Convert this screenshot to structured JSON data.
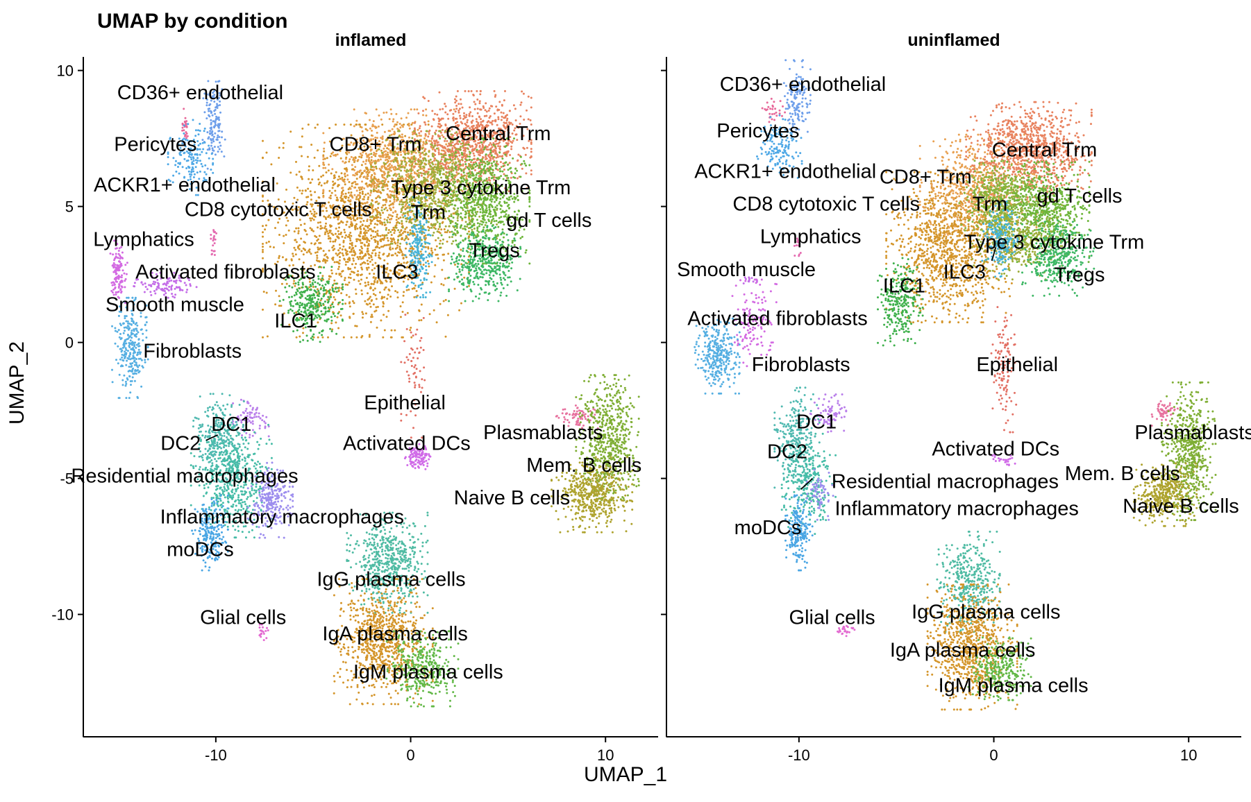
{
  "title": "UMAP by condition",
  "colors": {
    "Central Trm": "#E8825E",
    "CD8+ Trm": "#E8A050",
    "Type 3 cytokine Trm": "#9EAD3A",
    "Trm": "#88B43C",
    "gd T cells": "#6DB53A",
    "Tregs": "#3DB764",
    "ILC3": "#45B3D8",
    "CD8 cytotoxic T cells": "#D4952A",
    "ILC1": "#3EB04B",
    "CD36+ endothelial": "#6E9FEA",
    "Pericytes": "#E7699A",
    "ACKR1+ endothelial": "#4EA8E6",
    "Lymphatics": "#E46BB0",
    "Activated fibroblasts": "#D36AE2",
    "Smooth muscle": "#C46DE8",
    "Fibroblasts": "#56AFE2",
    "Epithelial": "#E26F63",
    "Activated DCs": "#D06AE8",
    "Plasmablasts": "#E7739F",
    "Mem. B cells": "#7FAE34",
    "Naive B cells": "#AEA32E",
    "DC1": "#B97EEA",
    "DC2": "#4FB9B0",
    "Residential macrophages": "#46BCA7",
    "Inflammatory macrophages": "#9C8DEE",
    "moDCs": "#4AA6E4",
    "IgG plasma cells": "#4FBBA3",
    "IgA plasma cells": "#D4952A",
    "IgM plasma cells": "#62B847",
    "Glial cells": "#E36BD1"
  },
  "chart_data": {
    "type": "scatter",
    "title": "UMAP by condition",
    "xlabel": "UMAP_1",
    "ylabel": "UMAP_2",
    "xlim": [
      -16.8,
      12.7
    ],
    "ylim": [
      -14.5,
      10.5
    ],
    "xticks": [
      -10,
      0,
      10
    ],
    "yticks": [
      10,
      5,
      0,
      -5,
      -10
    ],
    "grid": false,
    "legend": "none",
    "panels": [
      {
        "name": "inflamed",
        "clusters": [
          {
            "name": "CD8 cytotoxic T cells",
            "x": -2.3,
            "y": 4.1,
            "sx": 2.3,
            "sy": 1.7,
            "n": 1700
          },
          {
            "name": "CD8+ Trm",
            "x": -0.8,
            "y": 6.5,
            "sx": 1.6,
            "sy": 0.9,
            "n": 700
          },
          {
            "name": "Central Trm",
            "x": 3.2,
            "y": 7.4,
            "sx": 1.3,
            "sy": 0.8,
            "n": 900
          },
          {
            "name": "Type 3 cytokine Trm",
            "x": 1.2,
            "y": 5.7,
            "sx": 1.4,
            "sy": 0.9,
            "n": 800
          },
          {
            "name": "gd T cells",
            "x": 3.8,
            "y": 5.2,
            "sx": 1.0,
            "sy": 1.0,
            "n": 700
          },
          {
            "name": "Tregs",
            "x": 3.8,
            "y": 2.9,
            "sx": 0.8,
            "sy": 0.6,
            "n": 400
          },
          {
            "name": "ILC3",
            "x": 0.4,
            "y": 3.5,
            "sx": 0.3,
            "sy": 0.8,
            "n": 200
          },
          {
            "name": "ILC1",
            "x": -5.1,
            "y": 1.4,
            "sx": 0.7,
            "sy": 0.6,
            "n": 300
          },
          {
            "name": "CD36+ endothelial",
            "x": -10.1,
            "y": 8.0,
            "sx": 0.25,
            "sy": 0.7,
            "n": 130
          },
          {
            "name": "Pericytes",
            "x": -11.6,
            "y": 7.9,
            "sx": 0.1,
            "sy": 0.3,
            "n": 25
          },
          {
            "name": "ACKR1+ endothelial",
            "x": -11.3,
            "y": 6.8,
            "sx": 0.5,
            "sy": 0.6,
            "n": 150
          },
          {
            "name": "Lymphatics",
            "x": -10.1,
            "y": 3.6,
            "sx": 0.1,
            "sy": 0.3,
            "n": 20
          },
          {
            "name": "Activated fibroblasts",
            "x": -15.0,
            "y": 2.6,
            "sx": 0.2,
            "sy": 0.5,
            "n": 120
          },
          {
            "name": "Smooth muscle",
            "x": -12.6,
            "y": 2.1,
            "sx": 0.7,
            "sy": 0.2,
            "n": 110
          },
          {
            "name": "Fibroblasts",
            "x": -14.4,
            "y": -0.2,
            "sx": 0.4,
            "sy": 0.8,
            "n": 260
          },
          {
            "name": "Epithelial",
            "x": 0.2,
            "y": -1.2,
            "sx": 0.3,
            "sy": 1.0,
            "n": 60
          },
          {
            "name": "Activated DCs",
            "x": 0.4,
            "y": -4.2,
            "sx": 0.3,
            "sy": 0.2,
            "n": 110
          },
          {
            "name": "Plasmablasts",
            "x": 8.5,
            "y": -2.7,
            "sx": 0.5,
            "sy": 0.2,
            "n": 70
          },
          {
            "name": "Mem. B cells",
            "x": 10.1,
            "y": -3.5,
            "sx": 0.7,
            "sy": 1.0,
            "n": 600
          },
          {
            "name": "Naive B cells",
            "x": 9.3,
            "y": -5.6,
            "sx": 0.9,
            "sy": 0.6,
            "n": 500
          },
          {
            "name": "DC1",
            "x": -8.2,
            "y": -2.8,
            "sx": 0.4,
            "sy": 0.3,
            "n": 80
          },
          {
            "name": "DC2",
            "x": -9.9,
            "y": -3.5,
            "sx": 0.6,
            "sy": 0.7,
            "n": 300
          },
          {
            "name": "Residential macrophages",
            "x": -9.2,
            "y": -5.1,
            "sx": 0.9,
            "sy": 0.9,
            "n": 500
          },
          {
            "name": "Inflammatory macrophages",
            "x": -7.2,
            "y": -5.8,
            "sx": 0.5,
            "sy": 0.6,
            "n": 250
          },
          {
            "name": "moDCs",
            "x": -10.3,
            "y": -7.0,
            "sx": 0.4,
            "sy": 0.6,
            "n": 220
          },
          {
            "name": "IgG plasma cells",
            "x": -1.2,
            "y": -8.1,
            "sx": 0.9,
            "sy": 0.8,
            "n": 550
          },
          {
            "name": "IgA plasma cells",
            "x": -1.4,
            "y": -11.0,
            "sx": 1.1,
            "sy": 1.0,
            "n": 800
          },
          {
            "name": "IgM plasma cells",
            "x": 0.6,
            "y": -12.0,
            "sx": 0.8,
            "sy": 0.6,
            "n": 350
          },
          {
            "name": "Glial cells",
            "x": -7.6,
            "y": -10.6,
            "sx": 0.15,
            "sy": 0.15,
            "n": 20
          }
        ],
        "labels": [
          {
            "text": "CD36+ endothelial",
            "x": -10.8,
            "y": 9.2
          },
          {
            "text": "Pericytes",
            "x": -13.1,
            "y": 7.3
          },
          {
            "text": "ACKR1+ endothelial",
            "x": -11.6,
            "y": 5.8
          },
          {
            "text": "CD8 cytotoxic T cells",
            "x": -6.8,
            "y": 4.9
          },
          {
            "text": "CD8+ Trm",
            "x": -1.8,
            "y": 7.3
          },
          {
            "text": "Central Trm",
            "x": 4.5,
            "y": 7.7
          },
          {
            "text": "Type 3 cytokine Trm",
            "x": 3.6,
            "y": 5.7
          },
          {
            "text": "Trm",
            "x": 0.9,
            "y": 4.8
          },
          {
            "text": "gd T cells",
            "x": 7.1,
            "y": 4.5
          },
          {
            "text": "Tregs",
            "x": 4.3,
            "y": 3.4
          },
          {
            "text": "ILC3",
            "x": -0.7,
            "y": 2.6
          },
          {
            "text": "ILC1",
            "x": -5.9,
            "y": 0.8
          },
          {
            "text": "Lymphatics",
            "x": -13.7,
            "y": 3.8
          },
          {
            "text": "Activated fibroblasts",
            "x": -9.5,
            "y": 2.6
          },
          {
            "text": "Smooth muscle",
            "x": -12.1,
            "y": 1.4
          },
          {
            "text": "Fibroblasts",
            "x": -11.2,
            "y": -0.3
          },
          {
            "text": "Epithelial",
            "x": -0.3,
            "y": -2.2
          },
          {
            "text": "Activated DCs",
            "x": -0.2,
            "y": -3.7
          },
          {
            "text": "Plasmablasts",
            "x": 6.8,
            "y": -3.3
          },
          {
            "text": "Mem. B cells",
            "x": 8.9,
            "y": -4.5
          },
          {
            "text": "Naive B cells",
            "x": 5.2,
            "y": -5.7
          },
          {
            "text": "DC1",
            "x": -9.2,
            "y": -3.0
          },
          {
            "text": "DC2",
            "x": -11.8,
            "y": -3.7
          },
          {
            "text": "Residential macrophages",
            "x": -11.6,
            "y": -4.9
          },
          {
            "text": "Inflammatory macrophages",
            "x": -6.6,
            "y": -6.4
          },
          {
            "text": "moDCs",
            "x": -10.8,
            "y": -7.6
          },
          {
            "text": "IgG plasma cells",
            "x": -1.0,
            "y": -8.7
          },
          {
            "text": "Glial cells",
            "x": -8.6,
            "y": -10.1
          },
          {
            "text": "IgA plasma cells",
            "x": -0.8,
            "y": -10.7
          },
          {
            "text": "IgM plasma cells",
            "x": 0.9,
            "y": -12.1
          }
        ],
        "leaders": [
          {
            "x1": -9.9,
            "y1": -3.4,
            "x2": -10.5,
            "y2": -3.6
          }
        ]
      },
      {
        "name": "uninflamed",
        "clusters": [
          {
            "name": "CD8 cytotoxic T cells",
            "x": -2.3,
            "y": 3.5,
            "sx": 1.4,
            "sy": 1.2,
            "n": 1100
          },
          {
            "name": "CD8+ Trm",
            "x": -0.8,
            "y": 5.8,
            "sx": 1.3,
            "sy": 0.8,
            "n": 600
          },
          {
            "name": "Central Trm",
            "x": 1.8,
            "y": 7.0,
            "sx": 1.4,
            "sy": 0.8,
            "n": 900
          },
          {
            "name": "Trm",
            "x": 0.3,
            "y": 5.3,
            "sx": 0.9,
            "sy": 0.6,
            "n": 500
          },
          {
            "name": "gd T cells",
            "x": 2.6,
            "y": 4.8,
            "sx": 1.0,
            "sy": 0.8,
            "n": 600
          },
          {
            "name": "Type 3 cytokine Trm",
            "x": 1.2,
            "y": 3.7,
            "sx": 1.0,
            "sy": 0.6,
            "n": 400
          },
          {
            "name": "Tregs",
            "x": 3.3,
            "y": 3.1,
            "sx": 0.8,
            "sy": 0.6,
            "n": 350
          },
          {
            "name": "ILC3",
            "x": 0.3,
            "y": 3.8,
            "sx": 0.4,
            "sy": 0.6,
            "n": 200
          },
          {
            "name": "ILC1",
            "x": -4.8,
            "y": 1.5,
            "sx": 0.5,
            "sy": 0.7,
            "n": 260
          },
          {
            "name": "CD36+ endothelial",
            "x": -10.1,
            "y": 9.0,
            "sx": 0.3,
            "sy": 0.6,
            "n": 140
          },
          {
            "name": "Pericytes",
            "x": -11.3,
            "y": 8.5,
            "sx": 0.3,
            "sy": 0.2,
            "n": 30
          },
          {
            "name": "ACKR1+ endothelial",
            "x": -11.0,
            "y": 7.2,
            "sx": 0.5,
            "sy": 0.5,
            "n": 140
          },
          {
            "name": "Lymphatics",
            "x": -10.0,
            "y": 3.5,
            "sx": 0.1,
            "sy": 0.2,
            "n": 12
          },
          {
            "name": "Smooth muscle",
            "x": -12.5,
            "y": 2.3,
            "sx": 0.15,
            "sy": 0.1,
            "n": 12
          },
          {
            "name": "Activated fibroblasts",
            "x": -12.3,
            "y": 0.7,
            "sx": 0.5,
            "sy": 0.7,
            "n": 130
          },
          {
            "name": "Fibroblasts",
            "x": -14.2,
            "y": -0.5,
            "sx": 0.5,
            "sy": 0.6,
            "n": 320
          },
          {
            "name": "Epithelial",
            "x": 0.5,
            "y": -1.0,
            "sx": 0.3,
            "sy": 1.0,
            "n": 110
          },
          {
            "name": "Activated DCs",
            "x": 0.4,
            "y": -4.3,
            "sx": 0.3,
            "sy": 0.1,
            "n": 25
          },
          {
            "name": "Plasmablasts",
            "x": 8.8,
            "y": -2.6,
            "sx": 0.3,
            "sy": 0.2,
            "n": 60
          },
          {
            "name": "Mem. B cells",
            "x": 10.0,
            "y": -4.0,
            "sx": 0.6,
            "sy": 1.1,
            "n": 600
          },
          {
            "name": "Naive B cells",
            "x": 8.8,
            "y": -5.6,
            "sx": 0.7,
            "sy": 0.5,
            "n": 400
          },
          {
            "name": "DC1",
            "x": -8.5,
            "y": -2.6,
            "sx": 0.4,
            "sy": 0.3,
            "n": 80
          },
          {
            "name": "DC2",
            "x": -10.1,
            "y": -3.5,
            "sx": 0.5,
            "sy": 0.8,
            "n": 260
          },
          {
            "name": "Residential macrophages",
            "x": -9.5,
            "y": -5.2,
            "sx": 0.6,
            "sy": 0.8,
            "n": 280
          },
          {
            "name": "Inflammatory macrophages",
            "x": -8.9,
            "y": -5.6,
            "sx": 0.3,
            "sy": 0.4,
            "n": 60
          },
          {
            "name": "moDCs",
            "x": -10.0,
            "y": -7.0,
            "sx": 0.3,
            "sy": 0.6,
            "n": 200
          },
          {
            "name": "IgG plasma cells",
            "x": -1.3,
            "y": -8.8,
            "sx": 0.7,
            "sy": 0.8,
            "n": 400
          },
          {
            "name": "IgA plasma cells",
            "x": -1.1,
            "y": -11.2,
            "sx": 1.0,
            "sy": 1.0,
            "n": 800
          },
          {
            "name": "IgM plasma cells",
            "x": 0.3,
            "y": -12.0,
            "sx": 0.7,
            "sy": 0.5,
            "n": 280
          },
          {
            "name": "Glial cells",
            "x": -7.6,
            "y": -10.6,
            "sx": 0.3,
            "sy": 0.1,
            "n": 25
          }
        ],
        "labels": [
          {
            "text": "CD36+ endothelial",
            "x": -9.8,
            "y": 9.5
          },
          {
            "text": "Pericytes",
            "x": -12.1,
            "y": 7.8
          },
          {
            "text": "ACKR1+ endothelial",
            "x": -10.7,
            "y": 6.3
          },
          {
            "text": "CD8+ Trm",
            "x": -3.5,
            "y": 6.1
          },
          {
            "text": "Central Trm",
            "x": 2.6,
            "y": 7.1
          },
          {
            "text": "CD8 cytotoxic T cells",
            "x": -8.6,
            "y": 5.1
          },
          {
            "text": "Trm",
            "x": -0.2,
            "y": 5.1
          },
          {
            "text": "gd T cells",
            "x": 4.4,
            "y": 5.4
          },
          {
            "text": "Lymphatics",
            "x": -9.4,
            "y": 3.9
          },
          {
            "text": "Type 3 cytokine Trm",
            "x": 3.1,
            "y": 3.7
          },
          {
            "text": "Smooth muscle",
            "x": -12.7,
            "y": 2.7
          },
          {
            "text": "ILC3",
            "x": -1.5,
            "y": 2.6
          },
          {
            "text": "Tregs",
            "x": 4.4,
            "y": 2.5
          },
          {
            "text": "ILC1",
            "x": -4.6,
            "y": 2.1
          },
          {
            "text": "Activated fibroblasts",
            "x": -11.1,
            "y": 0.9
          },
          {
            "text": "Fibroblasts",
            "x": -9.9,
            "y": -0.8
          },
          {
            "text": "Epithelial",
            "x": 1.2,
            "y": -0.8
          },
          {
            "text": "DC1",
            "x": -9.1,
            "y": -2.9
          },
          {
            "text": "DC2",
            "x": -10.6,
            "y": -4.0
          },
          {
            "text": "Activated DCs",
            "x": 0.1,
            "y": -3.9
          },
          {
            "text": "Plasmablasts",
            "x": 10.3,
            "y": -3.3
          },
          {
            "text": "Mem. B cells",
            "x": 6.6,
            "y": -4.8
          },
          {
            "text": "Residential macrophages",
            "x": -2.5,
            "y": -5.1
          },
          {
            "text": "Naive B cells",
            "x": 9.6,
            "y": -6.0
          },
          {
            "text": "Inflammatory macrophages",
            "x": -1.9,
            "y": -6.1
          },
          {
            "text": "moDCs",
            "x": -11.6,
            "y": -6.8
          },
          {
            "text": "IgG plasma cells",
            "x": -0.4,
            "y": -9.9
          },
          {
            "text": "Glial cells",
            "x": -8.3,
            "y": -10.1
          },
          {
            "text": "IgA plasma cells",
            "x": -1.6,
            "y": -11.3
          },
          {
            "text": "IgM plasma cells",
            "x": 1.0,
            "y": -12.6
          }
        ],
        "leaders": [
          {
            "x1": -9.3,
            "y1": -5.0,
            "x2": -9.9,
            "y2": -5.4
          },
          {
            "x1": 0.1,
            "y1": 3.5,
            "x2": -0.1,
            "y2": 3.0
          }
        ]
      }
    ]
  }
}
